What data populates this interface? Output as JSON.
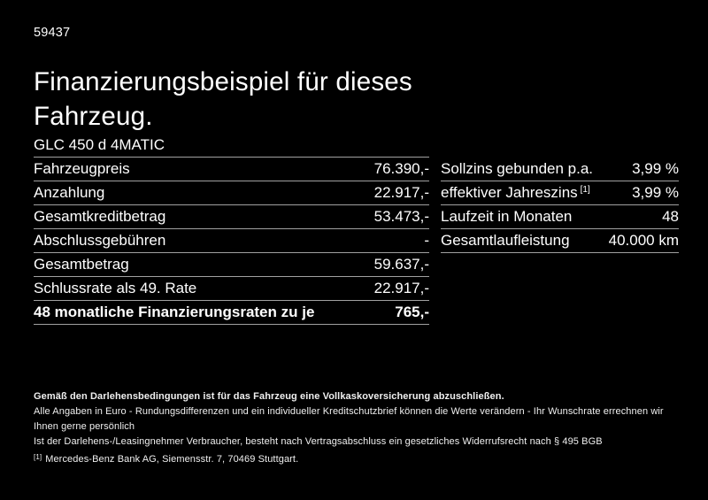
{
  "page": {
    "background_color": "#000000",
    "text_color": "#ffffff",
    "divider_color": "#a0a0a0",
    "ref_number": "59437",
    "title": "Finanzierungsbeispiel für dieses Fahrzeug."
  },
  "tables": {
    "left": {
      "header": "GLC 450 d 4MATIC",
      "rows": [
        {
          "label": "Fahrzeugpreis",
          "value": "76.390,-"
        },
        {
          "label": "Anzahlung",
          "value": "22.917,-"
        },
        {
          "label": "Gesamtkreditbetrag",
          "value": "53.473,-"
        },
        {
          "label": "Abschlussgebühren",
          "value": "-"
        },
        {
          "label": "Gesamtbetrag",
          "value": "59.637,-"
        },
        {
          "label": "Schlussrate als 49. Rate",
          "value": "22.917,-"
        },
        {
          "label": "48 monatliche Finanzierungsraten zu je",
          "value": "765,-",
          "emphasis": true
        }
      ]
    },
    "right": {
      "rows": [
        {
          "label": "Sollzins gebunden p.a.",
          "sup": "",
          "value": "3,99 %"
        },
        {
          "label": "effektiver Jahreszins",
          "sup": "[1]",
          "value": "3,99 %"
        },
        {
          "label": "Laufzeit in Monaten",
          "sup": "",
          "value": "48"
        },
        {
          "label": "Gesamtlaufleistung",
          "sup": "",
          "value": "40.000 km"
        }
      ]
    }
  },
  "footnotes": {
    "insurance": "Gemäß den Darlehensbedingungen ist für das Fahrzeug eine Vollkaskoversicherung abzuschließen.",
    "disclaimer1": "Alle Angaben in Euro - Rundungsdifferenzen und ein individueller Kreditschutzbrief können die Werte verändern - Ihr Wunschrate errechnen wir Ihnen gerne persönlich",
    "disclaimer2": "Ist der Darlehens-/Leasingnehmer Verbraucher, besteht nach Vertragsabschluss ein gesetzliches Widerrufsrecht nach § 495 BGB",
    "bank_sup": "[1]",
    "bank": "Mercedes-Benz Bank AG, Siemensstr. 7, 70469 Stuttgart."
  }
}
